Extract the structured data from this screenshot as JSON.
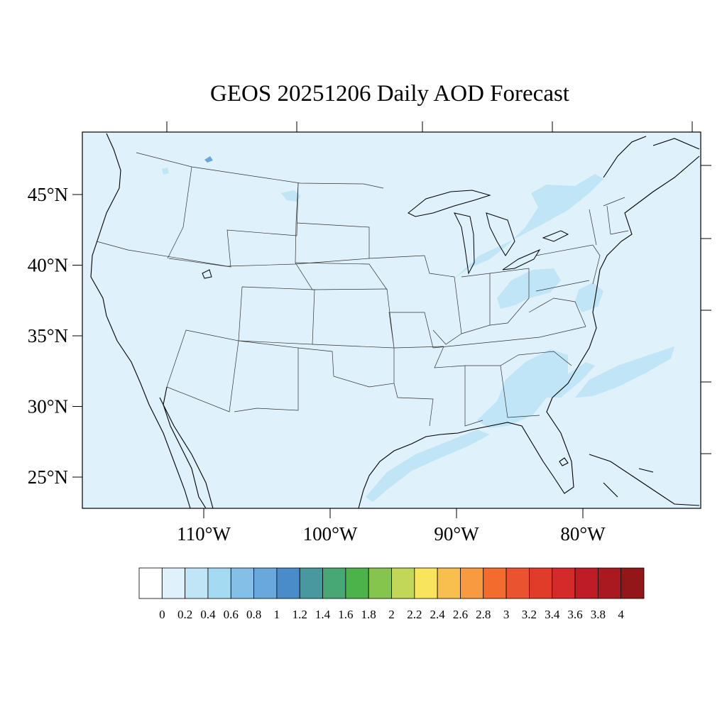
{
  "title": "GEOS 20251206 Daily AOD Forecast",
  "colors": {
    "ocean_background": "#dff1fa",
    "low_aod_fill": "#bfe5f6",
    "medium_low_aod_fill": "#a4dbf3",
    "coast": "#000000",
    "state_border": "#333333"
  },
  "map": {
    "projection": "equidistant-cylindrical",
    "lon_range": [
      -119,
      -70
    ],
    "lat_range": [
      22.5,
      49.5
    ],
    "lat_labels": [
      {
        "lat": 45,
        "label": "45°N"
      },
      {
        "lat": 40,
        "label": "40°N"
      },
      {
        "lat": 35,
        "label": "35°N"
      },
      {
        "lat": 30,
        "label": "30°N"
      },
      {
        "lat": 25,
        "label": "25°N"
      }
    ],
    "lon_labels": [
      {
        "lon": -110,
        "label": "110°W"
      },
      {
        "lon": -100,
        "label": "100°W"
      },
      {
        "lon": -90,
        "label": "90°W"
      },
      {
        "lon": -80,
        "label": "80°W"
      }
    ]
  },
  "colorbar": {
    "labels": [
      "0",
      "0.2",
      "0.4",
      "0.6",
      "0.8",
      "1",
      "1.2",
      "1.4",
      "1.6",
      "1.8",
      "2",
      "2.2",
      "2.4",
      "2.6",
      "2.8",
      "3",
      "3.2",
      "3.4",
      "3.6",
      "3.8",
      "4"
    ],
    "colors": [
      "#ffffff",
      "#dff1fa",
      "#bfe5f6",
      "#a4dbf3",
      "#83bfe6",
      "#68a8dc",
      "#4a8cca",
      "#48999f",
      "#48a875",
      "#4bb34a",
      "#86c54d",
      "#c2d658",
      "#f8e45d",
      "#f8bf4e",
      "#f89a3f",
      "#f36c2d",
      "#ea5330",
      "#e13b2a",
      "#d42a2a",
      "#bf1d25",
      "#a9191f",
      "#931719"
    ]
  }
}
